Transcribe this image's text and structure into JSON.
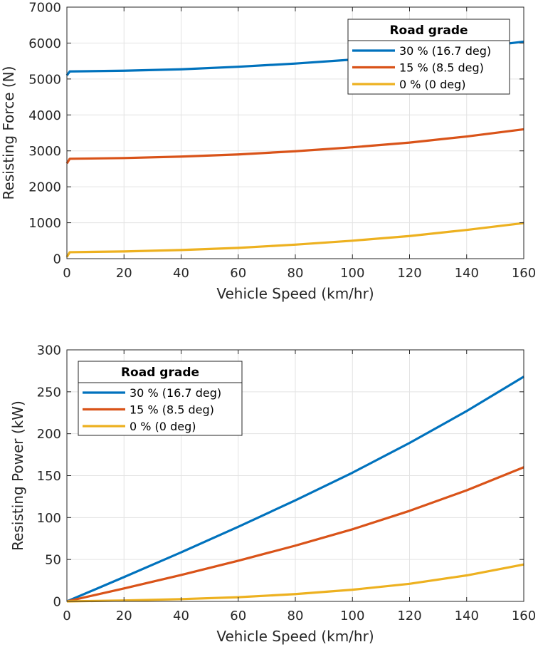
{
  "chart_data": [
    {
      "type": "line",
      "xlabel": "Vehicle Speed (km/hr)",
      "ylabel": "Resisting Force (N)",
      "xlim": [
        0,
        160
      ],
      "ylim": [
        0,
        7000
      ],
      "xticks": [
        0,
        20,
        40,
        60,
        80,
        100,
        120,
        140,
        160
      ],
      "yticks": [
        0,
        1000,
        2000,
        3000,
        4000,
        5000,
        6000,
        7000
      ],
      "grid": true,
      "legend": {
        "title": "Road grade",
        "placement": "top-right"
      },
      "series": [
        {
          "name": "30 % (16.7 deg)",
          "color": "#0072BD",
          "x": [
            0,
            1,
            20,
            40,
            60,
            80,
            100,
            120,
            140,
            160
          ],
          "y": [
            5100,
            5210,
            5230,
            5270,
            5340,
            5430,
            5540,
            5680,
            5850,
            6040
          ]
        },
        {
          "name": "15 % (8.5 deg)",
          "color": "#D95319",
          "x": [
            0,
            1,
            20,
            40,
            60,
            80,
            100,
            120,
            140,
            160
          ],
          "y": [
            2650,
            2780,
            2800,
            2840,
            2900,
            2990,
            3100,
            3230,
            3400,
            3600
          ]
        },
        {
          "name": "0 % (0 deg)",
          "color": "#EDB120",
          "x": [
            0,
            1,
            20,
            40,
            60,
            80,
            100,
            120,
            140,
            160
          ],
          "y": [
            50,
            180,
            200,
            240,
            300,
            390,
            500,
            630,
            800,
            990
          ]
        }
      ]
    },
    {
      "type": "line",
      "xlabel": "Vehicle Speed (km/hr)",
      "ylabel": "Resisting Power (kW)",
      "xlim": [
        0,
        160
      ],
      "ylim": [
        0,
        300
      ],
      "xticks": [
        0,
        20,
        40,
        60,
        80,
        100,
        120,
        140,
        160
      ],
      "yticks": [
        0,
        50,
        100,
        150,
        200,
        250,
        300
      ],
      "grid": true,
      "legend": {
        "title": "Road grade",
        "placement": "top-left"
      },
      "series": [
        {
          "name": "30 % (16.7 deg)",
          "color": "#0072BD",
          "x": [
            0,
            20,
            40,
            60,
            80,
            100,
            120,
            140,
            160
          ],
          "y": [
            0,
            29,
            58.5,
            89,
            120.5,
            153.5,
            189,
            227,
            268
          ]
        },
        {
          "name": "15 % (8.5 deg)",
          "color": "#D95319",
          "x": [
            0,
            20,
            40,
            60,
            80,
            100,
            120,
            140,
            160
          ],
          "y": [
            0,
            15.5,
            31.5,
            48.5,
            66.5,
            86,
            108,
            132.5,
            160
          ]
        },
        {
          "name": "0 % (0 deg)",
          "color": "#EDB120",
          "x": [
            0,
            20,
            40,
            60,
            80,
            100,
            120,
            140,
            160
          ],
          "y": [
            0,
            1.1,
            2.7,
            5,
            8.7,
            13.9,
            21,
            31,
            44
          ]
        }
      ]
    }
  ]
}
